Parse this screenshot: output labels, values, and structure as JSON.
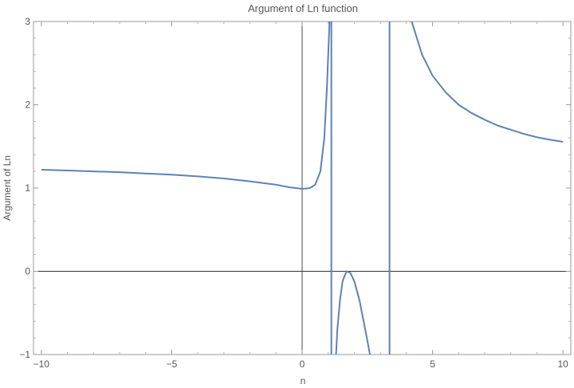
{
  "chart_data": {
    "type": "line",
    "title": "Argument of Ln function",
    "xlabel": "n",
    "ylabel": "Argument of Ln",
    "xlim": [
      -10.3,
      10.3
    ],
    "ylim": [
      -1,
      3
    ],
    "xticks": [
      -10,
      -5,
      0,
      5,
      10
    ],
    "yticks": [
      -1,
      0,
      1,
      2,
      3
    ],
    "grid": false,
    "line_color": "#5e81b5",
    "series": [
      {
        "segment": "left-branch",
        "points": [
          [
            -10,
            1.22
          ],
          [
            -9,
            1.21
          ],
          [
            -8,
            1.2
          ],
          [
            -7,
            1.19
          ],
          [
            -6,
            1.175
          ],
          [
            -5,
            1.16
          ],
          [
            -4,
            1.14
          ],
          [
            -3,
            1.115
          ],
          [
            -2,
            1.08
          ],
          [
            -1.5,
            1.06
          ],
          [
            -1,
            1.04
          ],
          [
            -0.5,
            1.01
          ],
          [
            0,
            0.99
          ],
          [
            0.3,
            1.0
          ],
          [
            0.5,
            1.04
          ],
          [
            0.7,
            1.2
          ],
          [
            0.85,
            1.6
          ],
          [
            0.95,
            2.2
          ],
          [
            1.05,
            3.0
          ]
        ]
      },
      {
        "segment": "left-asymptote",
        "points": [
          [
            1.12,
            3.0
          ],
          [
            1.12,
            -1.0
          ]
        ]
      },
      {
        "segment": "lower-arch",
        "points": [
          [
            1.3,
            -1.0
          ],
          [
            1.35,
            -0.7
          ],
          [
            1.45,
            -0.35
          ],
          [
            1.55,
            -0.12
          ],
          [
            1.7,
            0.0
          ],
          [
            1.85,
            -0.02
          ],
          [
            2.0,
            -0.12
          ],
          [
            2.2,
            -0.35
          ],
          [
            2.45,
            -0.75
          ],
          [
            2.6,
            -1.0
          ]
        ]
      },
      {
        "segment": "right-asymptote",
        "points": [
          [
            3.35,
            3.0
          ],
          [
            3.35,
            -1.0
          ]
        ]
      },
      {
        "segment": "right-branch",
        "points": [
          [
            4.2,
            3.0
          ],
          [
            4.6,
            2.6
          ],
          [
            5,
            2.35
          ],
          [
            5.5,
            2.15
          ],
          [
            6,
            2.0
          ],
          [
            6.5,
            1.9
          ],
          [
            7,
            1.82
          ],
          [
            7.5,
            1.75
          ],
          [
            8,
            1.7
          ],
          [
            8.5,
            1.65
          ],
          [
            9,
            1.61
          ],
          [
            9.5,
            1.58
          ],
          [
            10,
            1.555
          ]
        ]
      }
    ]
  }
}
